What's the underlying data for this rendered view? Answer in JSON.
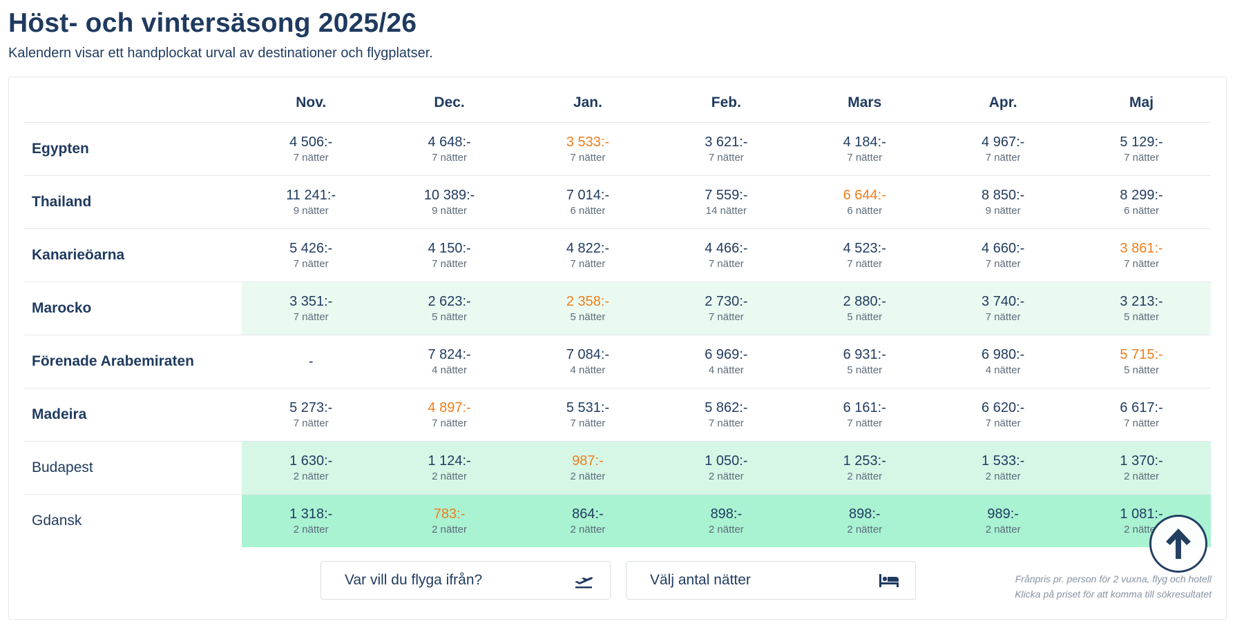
{
  "header": {
    "title": "Höst- och vintersäsong 2025/26",
    "subtitle": "Kalendern visar ett handplockat urval av destinationer och flygplatser."
  },
  "table": {
    "months": [
      "Nov.",
      "Dec.",
      "Jan.",
      "Feb.",
      "Mars",
      "Apr.",
      "Maj"
    ],
    "rows": [
      {
        "destination": "Egypten",
        "bold": true,
        "tint": "",
        "cells": [
          {
            "price": "4 506:-",
            "nights": "7 nätter",
            "lowest": false
          },
          {
            "price": "4 648:-",
            "nights": "7 nätter",
            "lowest": false
          },
          {
            "price": "3 533:-",
            "nights": "7 nätter",
            "lowest": true
          },
          {
            "price": "3 621:-",
            "nights": "7 nätter",
            "lowest": false
          },
          {
            "price": "4 184:-",
            "nights": "7 nätter",
            "lowest": false
          },
          {
            "price": "4 967:-",
            "nights": "7 nätter",
            "lowest": false
          },
          {
            "price": "5 129:-",
            "nights": "7 nätter",
            "lowest": false
          }
        ]
      },
      {
        "destination": "Thailand",
        "bold": true,
        "tint": "",
        "cells": [
          {
            "price": "11 241:-",
            "nights": "9 nätter",
            "lowest": false
          },
          {
            "price": "10 389:-",
            "nights": "9 nätter",
            "lowest": false
          },
          {
            "price": "7 014:-",
            "nights": "6 nätter",
            "lowest": false
          },
          {
            "price": "7 559:-",
            "nights": "14 nätter",
            "lowest": false
          },
          {
            "price": "6 644:-",
            "nights": "6 nätter",
            "lowest": true
          },
          {
            "price": "8 850:-",
            "nights": "9 nätter",
            "lowest": false
          },
          {
            "price": "8 299:-",
            "nights": "6 nätter",
            "lowest": false
          }
        ]
      },
      {
        "destination": "Kanarieöarna",
        "bold": true,
        "tint": "",
        "cells": [
          {
            "price": "5 426:-",
            "nights": "7 nätter",
            "lowest": false
          },
          {
            "price": "4 150:-",
            "nights": "7 nätter",
            "lowest": false
          },
          {
            "price": "4 822:-",
            "nights": "7 nätter",
            "lowest": false
          },
          {
            "price": "4 466:-",
            "nights": "7 nätter",
            "lowest": false
          },
          {
            "price": "4 523:-",
            "nights": "7 nätter",
            "lowest": false
          },
          {
            "price": "4 660:-",
            "nights": "7 nätter",
            "lowest": false
          },
          {
            "price": "3 861:-",
            "nights": "7 nätter",
            "lowest": true
          }
        ]
      },
      {
        "destination": "Marocko",
        "bold": true,
        "tint": "tint-1",
        "cells": [
          {
            "price": "3 351:-",
            "nights": "7 nätter",
            "lowest": false
          },
          {
            "price": "2 623:-",
            "nights": "5 nätter",
            "lowest": false
          },
          {
            "price": "2 358:-",
            "nights": "5 nätter",
            "lowest": true
          },
          {
            "price": "2 730:-",
            "nights": "7 nätter",
            "lowest": false
          },
          {
            "price": "2 880:-",
            "nights": "5 nätter",
            "lowest": false
          },
          {
            "price": "3 740:-",
            "nights": "7 nätter",
            "lowest": false
          },
          {
            "price": "3 213:-",
            "nights": "5 nätter",
            "lowest": false
          }
        ]
      },
      {
        "destination": "Förenade Arabemiraten",
        "bold": true,
        "tint": "",
        "cells": [
          {
            "price": "-",
            "nights": "",
            "lowest": false
          },
          {
            "price": "7 824:-",
            "nights": "4 nätter",
            "lowest": false
          },
          {
            "price": "7 084:-",
            "nights": "4 nätter",
            "lowest": false
          },
          {
            "price": "6 969:-",
            "nights": "4 nätter",
            "lowest": false
          },
          {
            "price": "6 931:-",
            "nights": "5 nätter",
            "lowest": false
          },
          {
            "price": "6 980:-",
            "nights": "4 nätter",
            "lowest": false
          },
          {
            "price": "5 715:-",
            "nights": "5 nätter",
            "lowest": true
          }
        ]
      },
      {
        "destination": "Madeira",
        "bold": true,
        "tint": "",
        "cells": [
          {
            "price": "5 273:-",
            "nights": "7 nätter",
            "lowest": false
          },
          {
            "price": "4 897:-",
            "nights": "7 nätter",
            "lowest": true
          },
          {
            "price": "5 531:-",
            "nights": "7 nätter",
            "lowest": false
          },
          {
            "price": "5 862:-",
            "nights": "7 nätter",
            "lowest": false
          },
          {
            "price": "6 161:-",
            "nights": "7 nätter",
            "lowest": false
          },
          {
            "price": "6 620:-",
            "nights": "7 nätter",
            "lowest": false
          },
          {
            "price": "6 617:-",
            "nights": "7 nätter",
            "lowest": false
          }
        ]
      },
      {
        "destination": "Budapest",
        "bold": false,
        "tint": "tint-2",
        "cells": [
          {
            "price": "1 630:-",
            "nights": "2 nätter",
            "lowest": false
          },
          {
            "price": "1 124:-",
            "nights": "2 nätter",
            "lowest": false
          },
          {
            "price": "987:-",
            "nights": "2 nätter",
            "lowest": true
          },
          {
            "price": "1 050:-",
            "nights": "2 nätter",
            "lowest": false
          },
          {
            "price": "1 253:-",
            "nights": "2 nätter",
            "lowest": false
          },
          {
            "price": "1 533:-",
            "nights": "2 nätter",
            "lowest": false
          },
          {
            "price": "1 370:-",
            "nights": "2 nätter",
            "lowest": false
          }
        ]
      },
      {
        "destination": "Gdansk",
        "bold": false,
        "tint": "tint-3",
        "cells": [
          {
            "price": "1 318:-",
            "nights": "2 nätter",
            "lowest": false
          },
          {
            "price": "783:-",
            "nights": "2 nätter",
            "lowest": true
          },
          {
            "price": "864:-",
            "nights": "2 nätter",
            "lowest": false
          },
          {
            "price": "898:-",
            "nights": "2 nätter",
            "lowest": false
          },
          {
            "price": "898:-",
            "nights": "2 nätter",
            "lowest": false
          },
          {
            "price": "989:-",
            "nights": "2 nätter",
            "lowest": false
          },
          {
            "price": "1 081:-",
            "nights": "2 nätter",
            "lowest": false
          }
        ]
      }
    ]
  },
  "filters": {
    "from_label": "Var vill du flyga ifrån?",
    "from_icon": "plane-departure-icon",
    "nights_label": "Välj antal nätter",
    "nights_icon": "bed-icon"
  },
  "footnote": {
    "line1": "Frånpris pr. person för 2 vuxna, flyg och hotell",
    "line2": "Klicka på priset för att komma till sökresultatet"
  },
  "scroll_top": {
    "icon": "arrow-up-icon"
  },
  "colors": {
    "text": "#1f3a5f",
    "lowest_price": "#f07d1a",
    "tint_light": "#ebfaf1",
    "tint_medium": "#d6f7e6",
    "tint_strong": "#a9f2d2"
  }
}
